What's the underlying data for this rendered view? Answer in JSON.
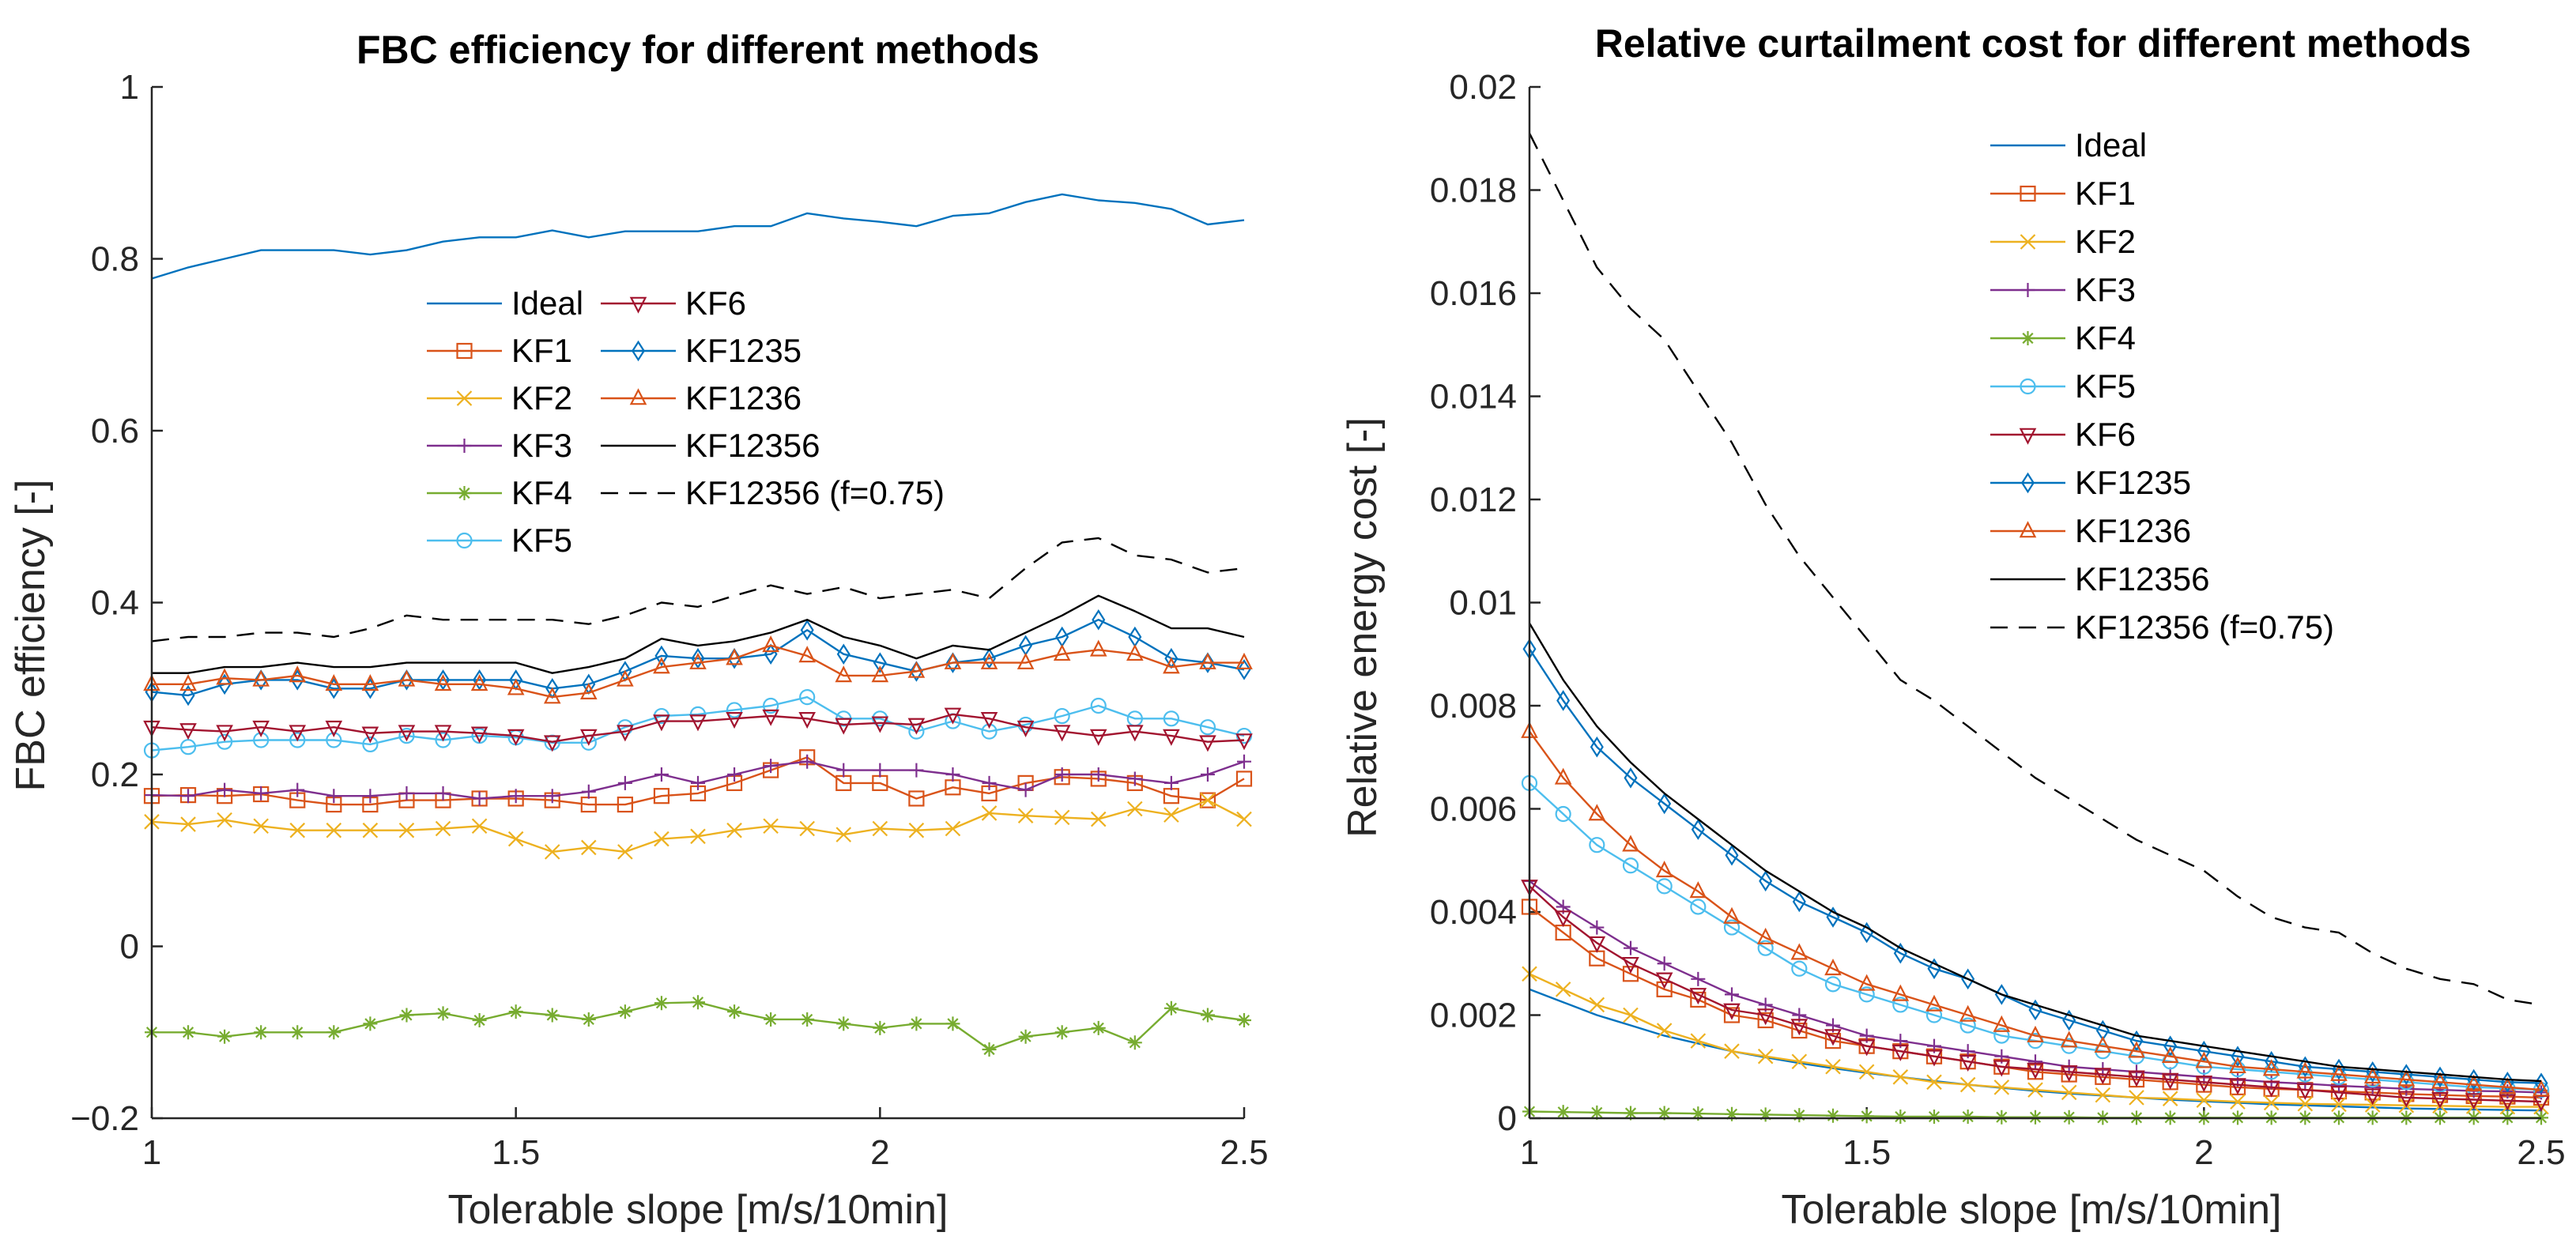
{
  "colors": {
    "Ideal": "#0072BD",
    "KF1": "#D95319",
    "KF2": "#EDB120",
    "KF3": "#7E2F8E",
    "KF4": "#77AC30",
    "KF5": "#4DBEEE",
    "KF6": "#A2142F",
    "KF1235": "#0072BD",
    "KF1236": "#D95319",
    "KF12356": "#000000",
    "KF12356 (f=0.75)": "#000000"
  },
  "chart_data": [
    {
      "type": "line",
      "title": "FBC efficiency for different methods",
      "xlabel": "Tolerable slope [m/s/10min]",
      "ylabel": "FBC efficiency [-]",
      "xlim": [
        1,
        2.5
      ],
      "ylim": [
        -0.2,
        1
      ],
      "xticks": [
        1,
        1.5,
        2,
        2.5
      ],
      "xtick_labels": [
        "1",
        "1.5",
        "2",
        "2.5"
      ],
      "yticks": [
        -0.2,
        0,
        0.2,
        0.4,
        0.6,
        0.8,
        1
      ],
      "ytick_labels": [
        "−0.2",
        "0",
        "0.2",
        "0.4",
        "0.6",
        "0.8",
        "1"
      ],
      "legend_columns": 2,
      "x": [
        1,
        1.05,
        1.1,
        1.15,
        1.2,
        1.25,
        1.3,
        1.35,
        1.4,
        1.45,
        1.5,
        1.55,
        1.6,
        1.65,
        1.7,
        1.75,
        1.8,
        1.85,
        1.9,
        1.95,
        2,
        2.05,
        2.1,
        2.15,
        2.2,
        2.25,
        2.3,
        2.35,
        2.4,
        2.45,
        2.5
      ],
      "series": [
        {
          "name": "Ideal",
          "marker": "none",
          "dash": "solid",
          "values": [
            0.777,
            0.79,
            0.8,
            0.81,
            0.81,
            0.81,
            0.805,
            0.81,
            0.82,
            0.825,
            0.825,
            0.833,
            0.825,
            0.832,
            0.832,
            0.832,
            0.838,
            0.838,
            0.853,
            0.847,
            0.843,
            0.838,
            0.85,
            0.853,
            0.866,
            0.875,
            0.868,
            0.865,
            0.858,
            0.84,
            0.845
          ]
        },
        {
          "name": "KF1",
          "marker": "square",
          "dash": "solid",
          "values": [
            0.175,
            0.176,
            0.175,
            0.177,
            0.17,
            0.165,
            0.165,
            0.17,
            0.17,
            0.172,
            0.172,
            0.17,
            0.165,
            0.165,
            0.175,
            0.178,
            0.19,
            0.205,
            0.22,
            0.19,
            0.19,
            0.172,
            0.185,
            0.178,
            0.19,
            0.197,
            0.195,
            0.19,
            0.175,
            0.17,
            0.195
          ]
        },
        {
          "name": "KF2",
          "marker": "x",
          "dash": "solid",
          "values": [
            0.145,
            0.142,
            0.147,
            0.14,
            0.135,
            0.135,
            0.135,
            0.135,
            0.137,
            0.14,
            0.125,
            0.11,
            0.115,
            0.11,
            0.125,
            0.128,
            0.135,
            0.14,
            0.137,
            0.13,
            0.137,
            0.135,
            0.137,
            0.155,
            0.152,
            0.15,
            0.148,
            0.16,
            0.153,
            0.17,
            0.148
          ]
        },
        {
          "name": "KF3",
          "marker": "plus",
          "dash": "solid",
          "values": [
            0.176,
            0.175,
            0.182,
            0.178,
            0.182,
            0.175,
            0.175,
            0.178,
            0.178,
            0.172,
            0.175,
            0.175,
            0.18,
            0.19,
            0.2,
            0.19,
            0.2,
            0.21,
            0.215,
            0.205,
            0.205,
            0.205,
            0.2,
            0.19,
            0.182,
            0.2,
            0.2,
            0.195,
            0.19,
            0.2,
            0.215
          ]
        },
        {
          "name": "KF4",
          "marker": "star",
          "dash": "solid",
          "values": [
            -0.1,
            -0.1,
            -0.105,
            -0.1,
            -0.1,
            -0.1,
            -0.09,
            -0.08,
            -0.078,
            -0.086,
            -0.076,
            -0.08,
            -0.085,
            -0.076,
            -0.066,
            -0.065,
            -0.076,
            -0.085,
            -0.085,
            -0.09,
            -0.095,
            -0.09,
            -0.09,
            -0.12,
            -0.105,
            -0.1,
            -0.095,
            -0.112,
            -0.072,
            -0.08,
            -0.086
          ]
        },
        {
          "name": "KF5",
          "marker": "circle",
          "dash": "solid",
          "values": [
            0.228,
            0.232,
            0.238,
            0.24,
            0.24,
            0.24,
            0.235,
            0.245,
            0.24,
            0.245,
            0.243,
            0.237,
            0.237,
            0.255,
            0.268,
            0.27,
            0.275,
            0.28,
            0.29,
            0.265,
            0.265,
            0.25,
            0.262,
            0.25,
            0.258,
            0.268,
            0.28,
            0.265,
            0.265,
            0.255,
            0.245
          ]
        },
        {
          "name": "KF6",
          "marker": "triangle-down",
          "dash": "solid",
          "values": [
            0.255,
            0.252,
            0.25,
            0.255,
            0.25,
            0.255,
            0.248,
            0.25,
            0.25,
            0.248,
            0.245,
            0.238,
            0.245,
            0.25,
            0.262,
            0.262,
            0.265,
            0.268,
            0.265,
            0.258,
            0.26,
            0.258,
            0.27,
            0.265,
            0.255,
            0.25,
            0.245,
            0.25,
            0.245,
            0.238,
            0.24
          ]
        },
        {
          "name": "KF1235",
          "marker": "diamond",
          "dash": "solid",
          "values": [
            0.296,
            0.292,
            0.305,
            0.31,
            0.31,
            0.3,
            0.3,
            0.31,
            0.31,
            0.31,
            0.31,
            0.3,
            0.305,
            0.32,
            0.338,
            0.335,
            0.335,
            0.34,
            0.368,
            0.34,
            0.33,
            0.32,
            0.33,
            0.335,
            0.35,
            0.36,
            0.38,
            0.36,
            0.335,
            0.33,
            0.322
          ]
        },
        {
          "name": "KF1236",
          "marker": "triangle-up",
          "dash": "solid",
          "values": [
            0.305,
            0.305,
            0.312,
            0.31,
            0.315,
            0.305,
            0.305,
            0.31,
            0.305,
            0.305,
            0.3,
            0.29,
            0.295,
            0.31,
            0.325,
            0.33,
            0.335,
            0.35,
            0.338,
            0.315,
            0.315,
            0.32,
            0.33,
            0.33,
            0.33,
            0.34,
            0.345,
            0.34,
            0.325,
            0.33,
            0.33
          ]
        },
        {
          "name": "KF12356",
          "marker": "none",
          "dash": "solid",
          "values": [
            0.318,
            0.318,
            0.325,
            0.325,
            0.33,
            0.325,
            0.325,
            0.33,
            0.33,
            0.33,
            0.33,
            0.318,
            0.325,
            0.335,
            0.358,
            0.35,
            0.355,
            0.365,
            0.38,
            0.36,
            0.35,
            0.335,
            0.35,
            0.345,
            0.365,
            0.385,
            0.408,
            0.39,
            0.37,
            0.37,
            0.36
          ]
        },
        {
          "name": "KF12356 (f=0.75)",
          "marker": "none",
          "dash": "dashed",
          "values": [
            0.355,
            0.36,
            0.36,
            0.365,
            0.365,
            0.36,
            0.37,
            0.385,
            0.38,
            0.38,
            0.38,
            0.38,
            0.375,
            0.385,
            0.4,
            0.395,
            0.408,
            0.42,
            0.41,
            0.418,
            0.405,
            0.41,
            0.415,
            0.405,
            0.44,
            0.47,
            0.475,
            0.455,
            0.45,
            0.435,
            0.44
          ]
        }
      ]
    },
    {
      "type": "line",
      "title": "Relative curtailment cost for different methods",
      "xlabel": "Tolerable slope [m/s/10min]",
      "ylabel": "Relative energy cost [-]",
      "xlim": [
        1,
        2.5
      ],
      "ylim": [
        0,
        0.02
      ],
      "xticks": [
        1,
        1.5,
        2,
        2.5
      ],
      "xtick_labels": [
        "1",
        "1.5",
        "2",
        "2.5"
      ],
      "yticks": [
        0,
        0.002,
        0.004,
        0.006,
        0.008,
        0.01,
        0.012,
        0.014,
        0.016,
        0.018,
        0.02
      ],
      "ytick_labels": [
        "0",
        "0.002",
        "0.004",
        "0.006",
        "0.008",
        "0.01",
        "0.012",
        "0.014",
        "0.016",
        "0.018",
        "0.02"
      ],
      "legend_columns": 1,
      "x": [
        1,
        1.05,
        1.1,
        1.15,
        1.2,
        1.25,
        1.3,
        1.35,
        1.4,
        1.45,
        1.5,
        1.55,
        1.6,
        1.65,
        1.7,
        1.75,
        1.8,
        1.85,
        1.9,
        1.95,
        2,
        2.05,
        2.1,
        2.15,
        2.2,
        2.25,
        2.3,
        2.35,
        2.4,
        2.45,
        2.5
      ],
      "series": [
        {
          "name": "Ideal",
          "marker": "none",
          "dash": "solid",
          "values": [
            0.0025,
            0.00225,
            0.002,
            0.0018,
            0.0016,
            0.00145,
            0.0013,
            0.00118,
            0.00107,
            0.00097,
            0.00088,
            0.0008,
            0.00072,
            0.00065,
            0.00059,
            0.00053,
            0.00048,
            0.00044,
            0.0004,
            0.00036,
            0.00033,
            0.0003,
            0.00027,
            0.00025,
            0.00023,
            0.00021,
            0.00019,
            0.00018,
            0.00017,
            0.00016,
            0.00015
          ]
        },
        {
          "name": "KF1",
          "marker": "square",
          "dash": "solid",
          "values": [
            0.0041,
            0.0036,
            0.0031,
            0.0028,
            0.0025,
            0.0023,
            0.002,
            0.0019,
            0.0017,
            0.0015,
            0.0014,
            0.0013,
            0.0012,
            0.0011,
            0.001,
            0.0009,
            0.00085,
            0.0008,
            0.00075,
            0.0007,
            0.00065,
            0.0006,
            0.00057,
            0.00055,
            0.00052,
            0.0005,
            0.00047,
            0.00045,
            0.00043,
            0.00042,
            0.0004
          ]
        },
        {
          "name": "KF2",
          "marker": "x",
          "dash": "solid",
          "values": [
            0.0028,
            0.0025,
            0.0022,
            0.002,
            0.0017,
            0.0015,
            0.0013,
            0.0012,
            0.0011,
            0.001,
            0.0009,
            0.0008,
            0.0007,
            0.00065,
            0.0006,
            0.00055,
            0.0005,
            0.00045,
            0.0004,
            0.00038,
            0.00035,
            0.00032,
            0.0003,
            0.00028,
            0.00027,
            0.00026,
            0.00025,
            0.00024,
            0.00023,
            0.00022,
            0.00022
          ]
        },
        {
          "name": "KF3",
          "marker": "plus",
          "dash": "solid",
          "values": [
            0.0046,
            0.0041,
            0.0037,
            0.0033,
            0.003,
            0.0027,
            0.0024,
            0.0022,
            0.002,
            0.0018,
            0.0016,
            0.0015,
            0.0014,
            0.0013,
            0.0012,
            0.0011,
            0.001,
            0.00095,
            0.0009,
            0.00085,
            0.0008,
            0.00075,
            0.0007,
            0.00067,
            0.00063,
            0.0006,
            0.00057,
            0.00055,
            0.00053,
            0.00052,
            0.0005
          ]
        },
        {
          "name": "KF4",
          "marker": "star",
          "dash": "solid",
          "values": [
            0.00013,
            0.00012,
            0.00011,
            0.0001,
            0.0001,
            9e-05,
            8e-05,
            7e-05,
            6e-05,
            5e-05,
            4e-05,
            3e-05,
            3e-05,
            3e-05,
            2e-05,
            2e-05,
            2e-05,
            1e-05,
            1e-05,
            1e-05,
            1e-05,
            1e-05,
            1e-05,
            1e-05,
            1e-05,
            1e-05,
            1e-05,
            1e-05,
            1e-05,
            1e-05,
            1e-05
          ]
        },
        {
          "name": "KF5",
          "marker": "circle",
          "dash": "solid",
          "values": [
            0.0065,
            0.0059,
            0.0053,
            0.0049,
            0.0045,
            0.0041,
            0.0037,
            0.0033,
            0.0029,
            0.0026,
            0.0024,
            0.0022,
            0.002,
            0.0018,
            0.0016,
            0.0015,
            0.0014,
            0.0013,
            0.0012,
            0.0011,
            0.001,
            0.00095,
            0.0009,
            0.00085,
            0.0008,
            0.00075,
            0.0007,
            0.00065,
            0.0006,
            0.00058,
            0.00055
          ]
        },
        {
          "name": "KF6",
          "marker": "triangle-down",
          "dash": "solid",
          "values": [
            0.0045,
            0.0039,
            0.0034,
            0.003,
            0.0027,
            0.0024,
            0.0021,
            0.002,
            0.0018,
            0.0016,
            0.0014,
            0.0013,
            0.0012,
            0.0011,
            0.001,
            0.00095,
            0.0009,
            0.00085,
            0.0008,
            0.00075,
            0.0007,
            0.00065,
            0.0006,
            0.00055,
            0.0005,
            0.00045,
            0.0004,
            0.00038,
            0.00036,
            0.00034,
            0.00032
          ]
        },
        {
          "name": "KF1235",
          "marker": "diamond",
          "dash": "solid",
          "values": [
            0.0091,
            0.0081,
            0.0072,
            0.0066,
            0.0061,
            0.0056,
            0.0051,
            0.0046,
            0.0042,
            0.0039,
            0.0036,
            0.0032,
            0.0029,
            0.0027,
            0.0024,
            0.0021,
            0.0019,
            0.0017,
            0.0015,
            0.0014,
            0.0013,
            0.0012,
            0.0011,
            0.001,
            0.00095,
            0.0009,
            0.00085,
            0.0008,
            0.00075,
            0.0007,
            0.00068
          ]
        },
        {
          "name": "KF1236",
          "marker": "triangle-up",
          "dash": "solid",
          "values": [
            0.0075,
            0.0066,
            0.0059,
            0.0053,
            0.0048,
            0.0044,
            0.0039,
            0.0035,
            0.0032,
            0.0029,
            0.0026,
            0.0024,
            0.0022,
            0.002,
            0.0018,
            0.0016,
            0.0015,
            0.0014,
            0.0013,
            0.0012,
            0.0011,
            0.001,
            0.00095,
            0.0009,
            0.00085,
            0.0008,
            0.00075,
            0.0007,
            0.00065,
            0.0006,
            0.00055
          ]
        },
        {
          "name": "KF12356",
          "marker": "none",
          "dash": "solid",
          "values": [
            0.0096,
            0.0085,
            0.0076,
            0.0069,
            0.0063,
            0.0058,
            0.0053,
            0.0048,
            0.0044,
            0.004,
            0.0037,
            0.0033,
            0.003,
            0.0027,
            0.0024,
            0.0022,
            0.002,
            0.0018,
            0.0016,
            0.0015,
            0.0014,
            0.0013,
            0.0012,
            0.0011,
            0.001,
            0.00095,
            0.0009,
            0.00085,
            0.0008,
            0.00075,
            0.00072
          ]
        },
        {
          "name": "KF12356 (f=0.75)",
          "marker": "none",
          "dash": "dashed",
          "values": [
            0.0191,
            0.0178,
            0.0165,
            0.0157,
            0.0151,
            0.0141,
            0.0131,
            0.0119,
            0.0109,
            0.0101,
            0.0093,
            0.0085,
            0.0081,
            0.0076,
            0.0071,
            0.0066,
            0.0062,
            0.0058,
            0.0054,
            0.0051,
            0.0048,
            0.0043,
            0.0039,
            0.0037,
            0.0036,
            0.0032,
            0.0029,
            0.0027,
            0.0026,
            0.0023,
            0.0022
          ]
        }
      ]
    }
  ]
}
